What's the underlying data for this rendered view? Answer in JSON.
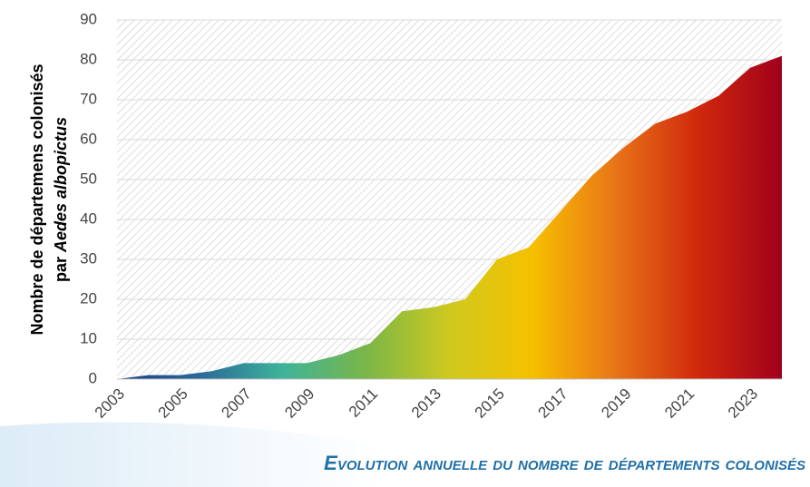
{
  "chart_data": {
    "type": "area",
    "y_label": {
      "line1": "Nombre de départemens colonisés",
      "line2_prefix": "par",
      "line2_italic": "Aedes albopictus"
    },
    "caption": "Evolution annuelle du nombre de départements colonisés",
    "categories": [
      "2003",
      null,
      "2005",
      null,
      "2007",
      null,
      "2009",
      null,
      "2011",
      null,
      "2013",
      null,
      "2015",
      null,
      "2017",
      null,
      "2019",
      null,
      "2021",
      null,
      "2023",
      null
    ],
    "values": [
      0,
      1,
      1,
      2,
      4,
      4,
      4,
      6,
      9,
      17,
      18,
      20,
      30,
      33,
      42,
      51,
      58,
      64,
      67,
      71,
      78,
      81
    ],
    "gradient": [
      "#1f3c88",
      "#2a6a9a",
      "#3fb39a",
      "#7ab648",
      "#cfc91e",
      "#f7c000",
      "#e87418",
      "#d0280c",
      "#a0001c"
    ],
    "ylim": [
      0,
      90
    ],
    "yticks": [
      0,
      10,
      20,
      30,
      40,
      50,
      60,
      70,
      80,
      90
    ],
    "grid": true
  }
}
